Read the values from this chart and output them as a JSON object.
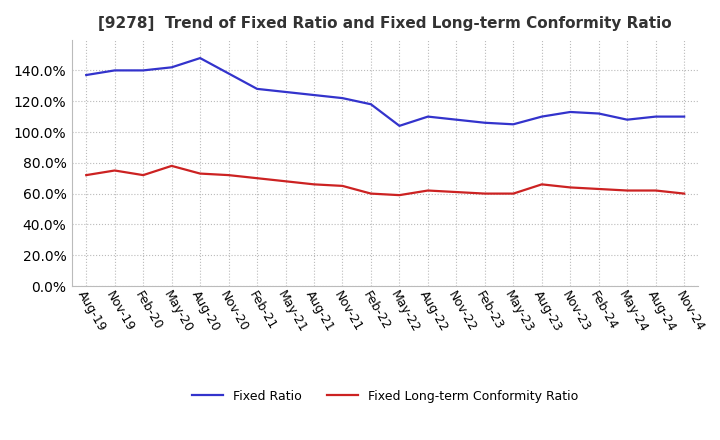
{
  "title": "[9278]  Trend of Fixed Ratio and Fixed Long-term Conformity Ratio",
  "x_labels": [
    "Aug-19",
    "Nov-19",
    "Feb-20",
    "May-20",
    "Aug-20",
    "Nov-20",
    "Feb-21",
    "May-21",
    "Aug-21",
    "Nov-21",
    "Feb-22",
    "May-22",
    "Aug-22",
    "Nov-22",
    "Feb-23",
    "May-23",
    "Aug-23",
    "Nov-23",
    "Feb-24",
    "May-24",
    "Aug-24",
    "Nov-24"
  ],
  "fixed_ratio": [
    137,
    140,
    140,
    142,
    148,
    138,
    128,
    126,
    124,
    122,
    118,
    104,
    110,
    108,
    106,
    105,
    110,
    113,
    112,
    108,
    110,
    110
  ],
  "fixed_lt_ratio": [
    72,
    75,
    72,
    78,
    73,
    72,
    70,
    68,
    66,
    65,
    60,
    59,
    62,
    61,
    60,
    60,
    66,
    64,
    63,
    62,
    62,
    60
  ],
  "ylim": [
    0,
    160
  ],
  "yticks": [
    0,
    20,
    40,
    60,
    80,
    100,
    120,
    140
  ],
  "line_color_fixed": "#3333CC",
  "line_color_lt": "#CC2222",
  "bg_color": "#FFFFFF",
  "grid_color": "#BBBBBB",
  "title_fontsize": 11,
  "tick_fontsize": 9,
  "legend_labels": [
    "Fixed Ratio",
    "Fixed Long-term Conformity Ratio"
  ]
}
